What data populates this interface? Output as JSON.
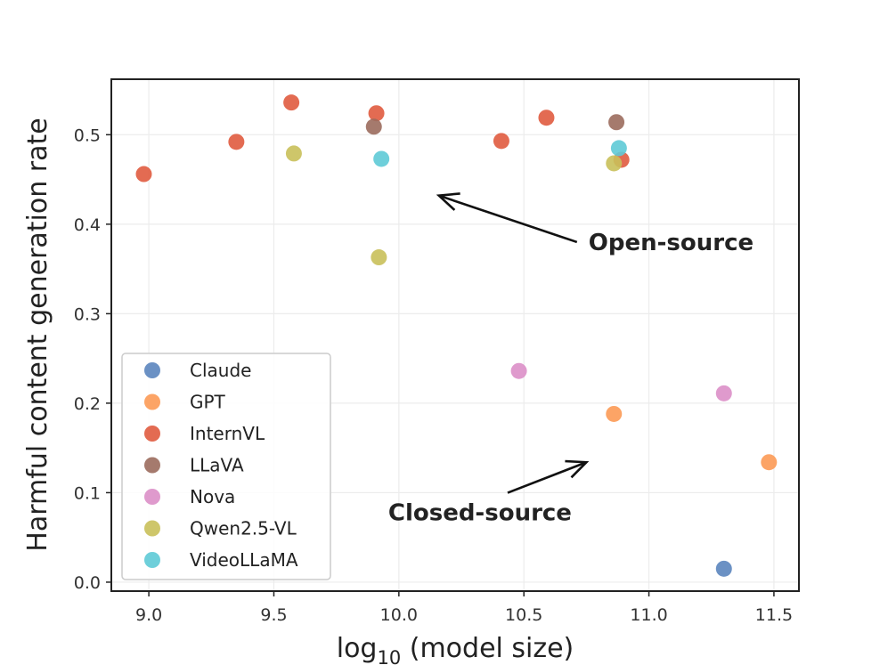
{
  "chart_data": {
    "type": "scatter",
    "xlabel_main": "log",
    "xlabel_sub": "10",
    "xlabel_rest": " (model size)",
    "ylabel": "Harmful content generation rate",
    "xlim": [
      8.85,
      11.6
    ],
    "ylim": [
      -0.01,
      0.562
    ],
    "x_ticks": [
      "9.0",
      "9.5",
      "10.0",
      "10.5",
      "11.0",
      "11.5"
    ],
    "y_ticks": [
      "0.0",
      "0.1",
      "0.2",
      "0.3",
      "0.4",
      "0.5"
    ],
    "grid": true,
    "legend_position": "lower-left",
    "series": [
      {
        "name": "Claude",
        "color": "#5b85be",
        "points": [
          {
            "x": 11.3,
            "y": 0.015
          }
        ]
      },
      {
        "name": "GPT",
        "color": "#fc9a55",
        "points": [
          {
            "x": 10.86,
            "y": 0.188
          },
          {
            "x": 11.48,
            "y": 0.134
          }
        ]
      },
      {
        "name": "InternVL",
        "color": "#e05b3f",
        "points": [
          {
            "x": 8.98,
            "y": 0.456
          },
          {
            "x": 9.35,
            "y": 0.492
          },
          {
            "x": 9.57,
            "y": 0.536
          },
          {
            "x": 9.91,
            "y": 0.524
          },
          {
            "x": 10.41,
            "y": 0.493
          },
          {
            "x": 10.59,
            "y": 0.519
          },
          {
            "x": 10.89,
            "y": 0.472
          }
        ]
      },
      {
        "name": "LLaVA",
        "color": "#9b6b5d",
        "points": [
          {
            "x": 9.9,
            "y": 0.509
          },
          {
            "x": 10.87,
            "y": 0.514
          }
        ]
      },
      {
        "name": "Nova",
        "color": "#dc8fc8",
        "points": [
          {
            "x": 10.48,
            "y": 0.236
          },
          {
            "x": 11.3,
            "y": 0.211
          }
        ]
      },
      {
        "name": "Qwen2.5-VL",
        "color": "#c9c05a",
        "points": [
          {
            "x": 9.58,
            "y": 0.479
          },
          {
            "x": 9.92,
            "y": 0.363
          },
          {
            "x": 10.86,
            "y": 0.468
          }
        ]
      },
      {
        "name": "VideoLLaMA",
        "color": "#5ecad6",
        "points": [
          {
            "x": 9.93,
            "y": 0.473
          },
          {
            "x": 10.88,
            "y": 0.485
          }
        ]
      }
    ],
    "annotations": [
      {
        "text": "Open-source",
        "text_x": 10.73,
        "text_y": 0.38,
        "arrow_to_x": 10.16,
        "arrow_to_y": 0.432
      },
      {
        "text": "Closed-source",
        "text_x": 10.72,
        "text_y": 0.078,
        "arrow_to_x": 10.75,
        "arrow_to_y": 0.134
      }
    ]
  }
}
